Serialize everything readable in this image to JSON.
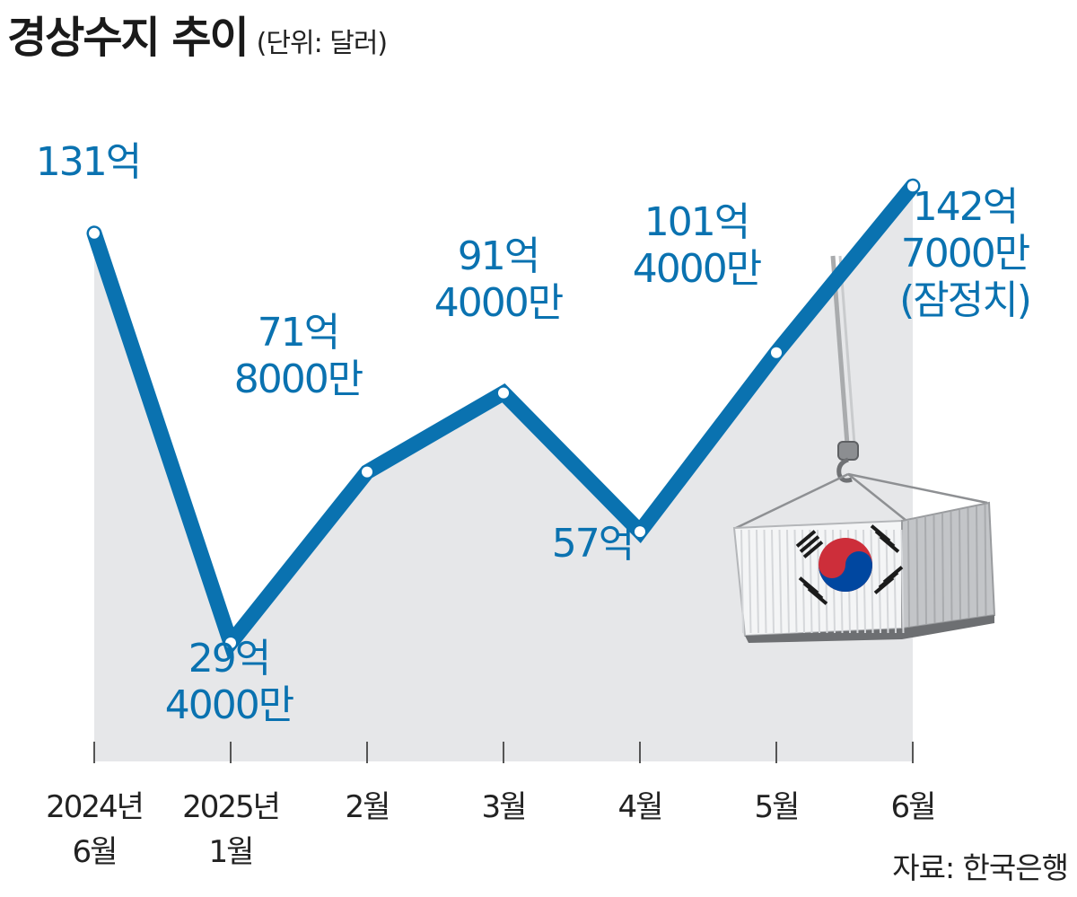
{
  "header": {
    "title": "경상수지 추이",
    "unit": "(단위: 달러)"
  },
  "footer": {
    "source": "자료: 한국은행"
  },
  "colors": {
    "line": "#0a72b0",
    "label": "#0a72b0",
    "area": "#e6e7e9",
    "tick": "#555555"
  },
  "chart_data": {
    "type": "line",
    "title": "경상수지 추이",
    "unit": "(단위: 달러)",
    "xlabel": "",
    "ylabel": "",
    "ylim": [
      0,
      160
    ],
    "grid": false,
    "legend": "none",
    "categories": [
      [
        "2024년",
        "6월"
      ],
      [
        "2025년",
        "1월"
      ],
      [
        "2월"
      ],
      [
        "3월"
      ],
      [
        "4월"
      ],
      [
        "5월"
      ],
      [
        "6월"
      ]
    ],
    "series": [
      {
        "values": [
          131,
          29.4,
          71.8,
          91.4,
          57,
          101.4,
          142.7
        ],
        "labels": [
          [
            "131억"
          ],
          [
            "29억",
            "4000만"
          ],
          [
            "71억",
            "8000만"
          ],
          [
            "91억",
            "4000만"
          ],
          [
            "57억"
          ],
          [
            "101억",
            "4000만"
          ],
          [
            "142억",
            "7000만",
            "(잠정치)"
          ]
        ]
      }
    ]
  },
  "illustration": {
    "subject": "shipping-container-with-korean-flag",
    "icon": "container-icon"
  }
}
